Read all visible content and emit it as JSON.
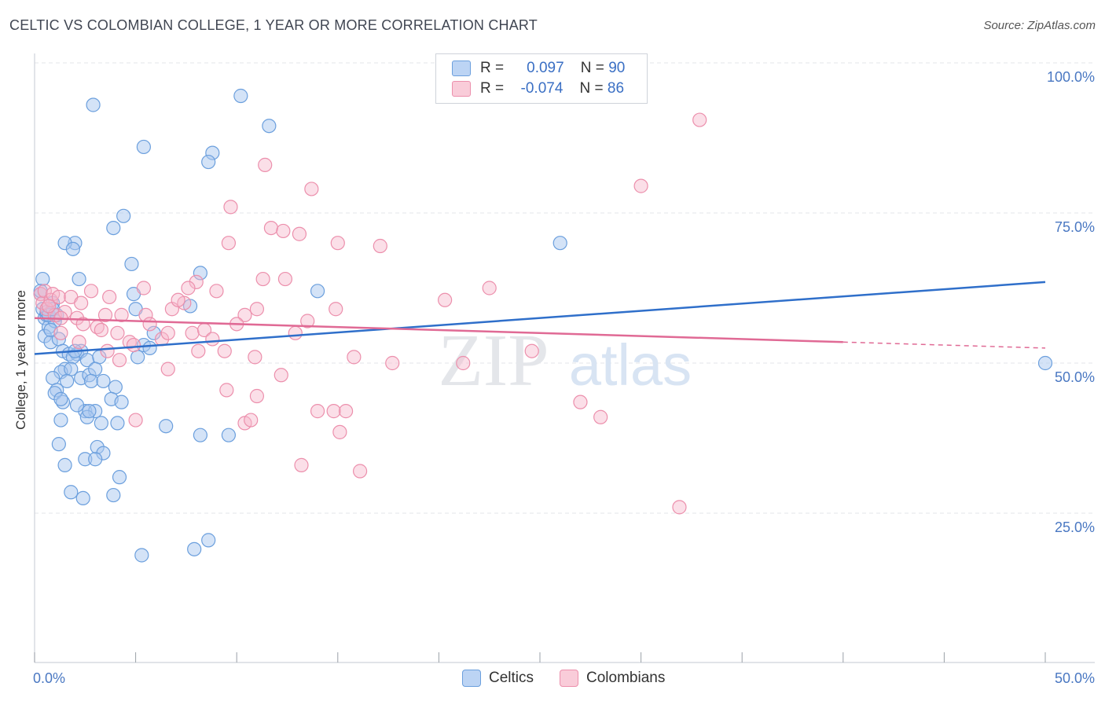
{
  "title": "CELTIC VS COLOMBIAN COLLEGE, 1 YEAR OR MORE CORRELATION CHART",
  "source": "Source: ZipAtlas.com",
  "watermark": {
    "zip": "ZIP",
    "atlas": "atlas"
  },
  "legend": {
    "rows": [
      {
        "r_label": "R =",
        "r_value": "0.097",
        "n_label": "N =",
        "n_value": "90"
      },
      {
        "r_label": "R =",
        "r_value": "-0.074",
        "n_label": "N =",
        "n_value": "86"
      }
    ]
  },
  "bottom_legend": {
    "celtics": "Celtics",
    "colombians": "Colombians"
  },
  "colors": {
    "celtic_fill": "#a9c8f0",
    "celtic_stroke": "#6b9fdd",
    "celtic_line": "#2f6fca",
    "colombian_fill": "#f7b9cb",
    "colombian_stroke": "#ec8fac",
    "colombian_line": "#e06a95",
    "tick_text": "#4a78c2",
    "grid": "#e3e6ea"
  },
  "chart_data": {
    "type": "scatter",
    "title": "CELTIC VS COLOMBIAN COLLEGE, 1 YEAR OR MORE CORRELATION CHART",
    "xlabel": "",
    "ylabel": "College, 1 year or more",
    "xlim": [
      0,
      50
    ],
    "ylim": [
      0,
      105
    ],
    "x_tick_labels": [
      "0.0%",
      "50.0%"
    ],
    "y_ticks": [
      25,
      50,
      75,
      100
    ],
    "y_tick_labels": [
      "25.0%",
      "50.0%",
      "75.0%",
      "100.0%"
    ],
    "series": [
      {
        "name": "Celtics",
        "r": 0.097,
        "n": 90,
        "trend": {
          "x0": 0,
          "y0": 51.5,
          "x1": 50,
          "y1": 63.5
        },
        "points": [
          [
            0.3,
            61.5
          ],
          [
            0.4,
            59.0
          ],
          [
            0.5,
            57.5
          ],
          [
            0.6,
            58.0
          ],
          [
            0.7,
            56.0
          ],
          [
            0.5,
            54.5
          ],
          [
            0.8,
            53.5
          ],
          [
            0.4,
            64.0
          ],
          [
            0.9,
            60.0
          ],
          [
            1.0,
            57.0
          ],
          [
            0.6,
            58.5
          ],
          [
            0.3,
            62.0
          ],
          [
            0.7,
            58.0
          ],
          [
            1.1,
            58.0
          ],
          [
            0.9,
            59.0
          ],
          [
            1.2,
            54.0
          ],
          [
            1.4,
            52.0
          ],
          [
            1.7,
            51.5
          ],
          [
            2.1,
            51.5
          ],
          [
            2.3,
            52.0
          ],
          [
            1.9,
            51.0
          ],
          [
            2.6,
            50.5
          ],
          [
            1.5,
            49.0
          ],
          [
            1.3,
            48.5
          ],
          [
            1.8,
            49.0
          ],
          [
            3.2,
            51.0
          ],
          [
            1.6,
            47.0
          ],
          [
            2.3,
            47.5
          ],
          [
            2.7,
            48.0
          ],
          [
            3.0,
            49.0
          ],
          [
            0.9,
            47.5
          ],
          [
            1.1,
            45.5
          ],
          [
            1.0,
            45.0
          ],
          [
            1.4,
            43.5
          ],
          [
            2.8,
            47.0
          ],
          [
            4.0,
            46.0
          ],
          [
            3.8,
            44.0
          ],
          [
            2.5,
            42.0
          ],
          [
            3.0,
            42.0
          ],
          [
            2.6,
            41.0
          ],
          [
            2.7,
            42.0
          ],
          [
            1.3,
            40.5
          ],
          [
            3.3,
            40.0
          ],
          [
            4.1,
            40.0
          ],
          [
            6.5,
            39.5
          ],
          [
            8.2,
            38.0
          ],
          [
            9.6,
            38.0
          ],
          [
            1.2,
            36.5
          ],
          [
            3.1,
            36.0
          ],
          [
            3.4,
            35.0
          ],
          [
            2.5,
            34.0
          ],
          [
            3.0,
            34.0
          ],
          [
            1.5,
            33.0
          ],
          [
            4.2,
            31.0
          ],
          [
            1.8,
            28.5
          ],
          [
            2.4,
            27.5
          ],
          [
            3.9,
            28.0
          ],
          [
            8.6,
            20.5
          ],
          [
            7.9,
            19.0
          ],
          [
            5.3,
            18.0
          ],
          [
            2.0,
            70.0
          ],
          [
            1.5,
            70.0
          ],
          [
            1.9,
            69.0
          ],
          [
            4.4,
            74.5
          ],
          [
            3.9,
            72.5
          ],
          [
            4.8,
            66.5
          ],
          [
            2.2,
            64.0
          ],
          [
            8.2,
            65.0
          ],
          [
            7.7,
            59.5
          ],
          [
            4.9,
            61.5
          ],
          [
            5.0,
            59.0
          ],
          [
            5.1,
            51.0
          ],
          [
            5.4,
            53.0
          ],
          [
            5.7,
            52.5
          ],
          [
            14.0,
            62.0
          ],
          [
            26.0,
            70.0
          ],
          [
            50.0,
            50.0
          ],
          [
            2.9,
            93.0
          ],
          [
            10.2,
            94.5
          ],
          [
            11.6,
            89.5
          ],
          [
            5.4,
            86.0
          ],
          [
            8.8,
            85.0
          ],
          [
            8.6,
            83.5
          ],
          [
            4.3,
            43.5
          ],
          [
            2.1,
            43.0
          ],
          [
            1.3,
            44.0
          ],
          [
            0.8,
            55.5
          ],
          [
            3.4,
            47.0
          ],
          [
            2.0,
            52.0
          ],
          [
            5.9,
            55.0
          ]
        ]
      },
      {
        "name": "Colombians",
        "r": -0.074,
        "n": 86,
        "trend": {
          "x0": 0,
          "y0": 57.5,
          "x1": 40,
          "y1": 53.5,
          "dash_x1": 50,
          "dash_y1": 52.5
        },
        "points": [
          [
            0.3,
            61.5
          ],
          [
            0.4,
            60.0
          ],
          [
            0.5,
            62.0
          ],
          [
            0.6,
            59.0
          ],
          [
            0.8,
            60.5
          ],
          [
            0.9,
            61.5
          ],
          [
            1.2,
            61.0
          ],
          [
            1.0,
            58.0
          ],
          [
            1.5,
            58.5
          ],
          [
            1.8,
            61.0
          ],
          [
            0.7,
            59.5
          ],
          [
            1.3,
            57.5
          ],
          [
            2.3,
            60.0
          ],
          [
            2.8,
            62.0
          ],
          [
            3.7,
            61.0
          ],
          [
            2.1,
            57.5
          ],
          [
            2.4,
            56.5
          ],
          [
            3.1,
            56.0
          ],
          [
            3.5,
            58.0
          ],
          [
            3.3,
            55.5
          ],
          [
            4.3,
            58.0
          ],
          [
            4.1,
            55.0
          ],
          [
            4.7,
            53.5
          ],
          [
            4.9,
            53.0
          ],
          [
            3.6,
            52.0
          ],
          [
            4.2,
            50.5
          ],
          [
            5.5,
            58.0
          ],
          [
            5.7,
            56.5
          ],
          [
            6.3,
            54.0
          ],
          [
            6.6,
            55.0
          ],
          [
            6.8,
            59.0
          ],
          [
            7.4,
            60.0
          ],
          [
            7.8,
            55.0
          ],
          [
            8.4,
            55.5
          ],
          [
            8.1,
            52.0
          ],
          [
            8.8,
            54.0
          ],
          [
            9.4,
            52.0
          ],
          [
            10.4,
            58.0
          ],
          [
            10.0,
            56.5
          ],
          [
            11.0,
            59.0
          ],
          [
            12.9,
            55.0
          ],
          [
            13.5,
            57.0
          ],
          [
            14.9,
            59.0
          ],
          [
            7.1,
            60.5
          ],
          [
            8.0,
            63.5
          ],
          [
            5.4,
            62.5
          ],
          [
            7.6,
            62.5
          ],
          [
            9.0,
            62.0
          ],
          [
            11.3,
            64.0
          ],
          [
            12.4,
            64.0
          ],
          [
            9.6,
            70.0
          ],
          [
            11.7,
            72.5
          ],
          [
            12.3,
            72.0
          ],
          [
            13.1,
            71.5
          ],
          [
            15.0,
            70.0
          ],
          [
            17.1,
            69.5
          ],
          [
            9.7,
            76.0
          ],
          [
            13.7,
            79.0
          ],
          [
            11.4,
            83.0
          ],
          [
            30.0,
            79.5
          ],
          [
            32.9,
            90.5
          ],
          [
            6.6,
            49.0
          ],
          [
            10.9,
            51.0
          ],
          [
            15.8,
            51.0
          ],
          [
            17.7,
            50.0
          ],
          [
            21.2,
            50.0
          ],
          [
            24.6,
            52.0
          ],
          [
            9.5,
            45.5
          ],
          [
            11.0,
            44.5
          ],
          [
            12.2,
            48.0
          ],
          [
            14.0,
            42.0
          ],
          [
            14.8,
            42.0
          ],
          [
            15.4,
            42.0
          ],
          [
            15.1,
            38.5
          ],
          [
            10.4,
            40.0
          ],
          [
            10.7,
            40.5
          ],
          [
            5.0,
            40.5
          ],
          [
            13.2,
            33.0
          ],
          [
            16.1,
            32.0
          ],
          [
            27.0,
            43.5
          ],
          [
            28.0,
            41.0
          ],
          [
            31.9,
            26.0
          ],
          [
            20.3,
            60.5
          ],
          [
            22.5,
            62.5
          ],
          [
            1.3,
            55.0
          ],
          [
            2.2,
            53.5
          ]
        ]
      }
    ]
  }
}
